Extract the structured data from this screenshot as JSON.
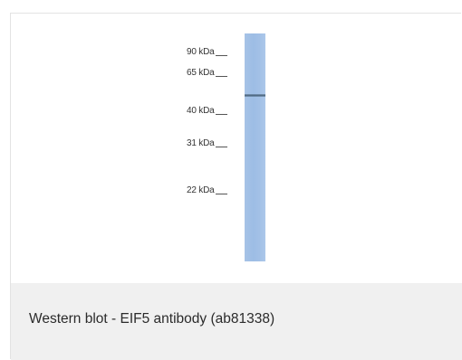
{
  "figure": {
    "markers": [
      {
        "label": "90 kDa"
      },
      {
        "label": "65 kDa"
      },
      {
        "label": "40 kDa"
      },
      {
        "label": "31 kDa"
      },
      {
        "label": "22 kDa"
      }
    ],
    "caption": "Western blot - EIF5 antibody (ab81338)",
    "colors": {
      "lane": "#a2c0e6",
      "band": "#4a6478",
      "caption_background": "#f0f0f0"
    }
  }
}
